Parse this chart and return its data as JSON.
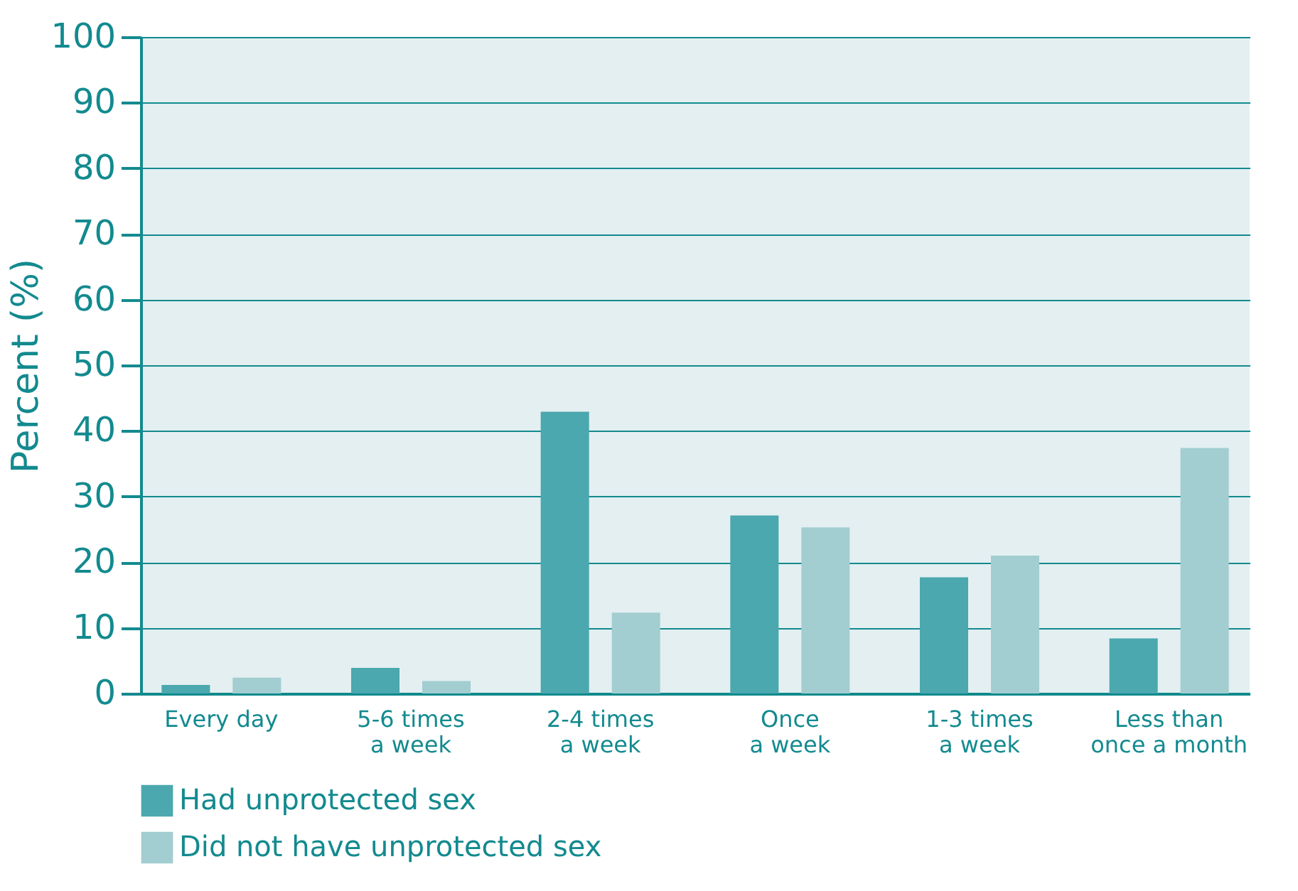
{
  "chart_data": {
    "type": "bar",
    "ylabel": "Percent (%)",
    "categories": [
      "Every day",
      "5-6 times\na week",
      "2-4 times\na week",
      "Once\na week",
      "1-3 times\na week",
      "Less than\nonce a month"
    ],
    "series": [
      {
        "name": "Had unprotected sex",
        "color": "#4aa8ae",
        "values": [
          1.3,
          3.9,
          42.9,
          27.1,
          17.7,
          8.4
        ]
      },
      {
        "name": "Did not have unprotected sex",
        "color": "#a2cdd1",
        "values": [
          2.4,
          1.9,
          12.3,
          25.3,
          21.0,
          37.4
        ]
      }
    ],
    "ylim": [
      0,
      100
    ],
    "yticks": [
      0,
      10,
      20,
      30,
      40,
      50,
      60,
      70,
      80,
      90,
      100
    ],
    "grid": "y",
    "legend": "bottom left"
  }
}
